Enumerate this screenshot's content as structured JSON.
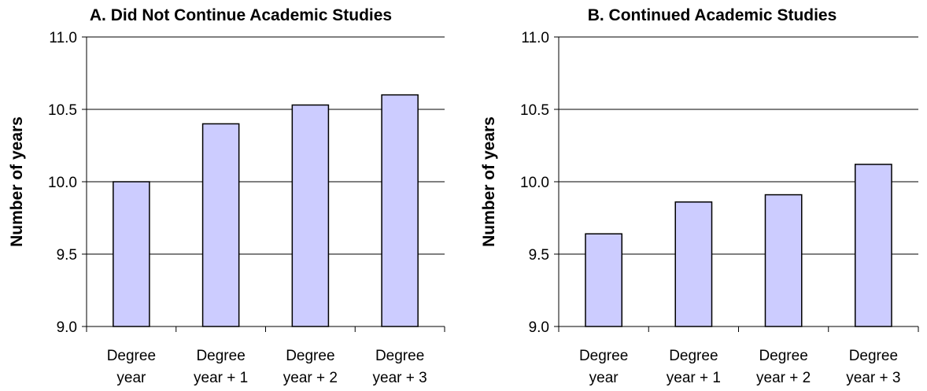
{
  "colors": {
    "bar_fill": "#ccccff",
    "bar_stroke": "#000000",
    "grid": "#000000"
  },
  "chart_data": [
    {
      "type": "bar",
      "title": "A. Did Not Continue Academic Studies",
      "xlabel": "",
      "ylabel": "Number of years",
      "ylim": [
        9.0,
        11.0
      ],
      "yticks": [
        "9.0",
        "9.5",
        "10.0",
        "10.5",
        "11.0"
      ],
      "grid": "horizontal",
      "categories": [
        [
          "Degree",
          "year"
        ],
        [
          "Degree",
          "year + 1"
        ],
        [
          "Degree",
          "year + 2"
        ],
        [
          "Degree",
          "year + 3"
        ]
      ],
      "values": [
        10.0,
        10.4,
        10.53,
        10.6
      ]
    },
    {
      "type": "bar",
      "title": "B. Continued Academic Studies",
      "xlabel": "",
      "ylabel": "Number of years",
      "ylim": [
        9.0,
        11.0
      ],
      "yticks": [
        "9.0",
        "9.5",
        "10.0",
        "10.5",
        "11.0"
      ],
      "grid": "horizontal",
      "categories": [
        [
          "Degree",
          "year"
        ],
        [
          "Degree",
          "year + 1"
        ],
        [
          "Degree",
          "year + 2"
        ],
        [
          "Degree",
          "year + 3"
        ]
      ],
      "values": [
        9.64,
        9.86,
        9.91,
        10.12
      ]
    }
  ]
}
